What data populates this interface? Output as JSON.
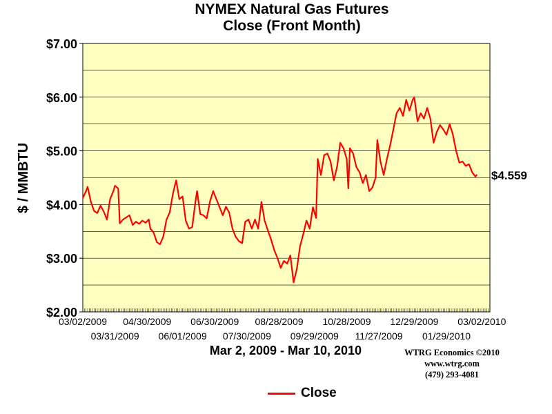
{
  "chart_data": {
    "type": "line",
    "title": "NYMEX Natural Gas Futures",
    "subtitle": "Close (Front Month)",
    "ylabel": "$ / MMBTU",
    "xlabel": "Mar 2, 2009 - Mar 10, 2010",
    "ylim": [
      2.0,
      7.0
    ],
    "y_ticks": [
      "$2.00",
      "$3.00",
      "$4.00",
      "$5.00",
      "$6.00",
      "$7.00"
    ],
    "y_tick_values": [
      2,
      3,
      4,
      5,
      6,
      7
    ],
    "x_ticks_row1": [
      "03/02/2009",
      "04/30/2009",
      "06/30/2009",
      "08/28/2009",
      "10/28/2009",
      "12/29/2009",
      "03/02/2010"
    ],
    "x_ticks_row2": [
      "03/31/2009",
      "06/01/2009",
      "07/30/2009",
      "09/29/2009",
      "11/27/2009",
      "01/29/2010"
    ],
    "x_tick_index_row1": [
      0,
      40,
      82,
      122,
      164,
      206,
      248
    ],
    "x_tick_index_row2": [
      20,
      62,
      102,
      144,
      184,
      226
    ],
    "trading_days": 254,
    "grid": "horizontal",
    "last_value_label": "$4.559",
    "series": [
      {
        "name": "Close",
        "color": "#ff0000",
        "points": [
          [
            0,
            4.12
          ],
          [
            2,
            4.25
          ],
          [
            3,
            4.33
          ],
          [
            5,
            4.05
          ],
          [
            7,
            3.88
          ],
          [
            9,
            3.84
          ],
          [
            11,
            3.98
          ],
          [
            13,
            3.87
          ],
          [
            15,
            3.72
          ],
          [
            17,
            4.1
          ],
          [
            19,
            4.25
          ],
          [
            20,
            4.35
          ],
          [
            22,
            4.3
          ],
          [
            23,
            3.65
          ],
          [
            25,
            3.72
          ],
          [
            27,
            3.76
          ],
          [
            29,
            3.8
          ],
          [
            31,
            3.62
          ],
          [
            33,
            3.68
          ],
          [
            35,
            3.64
          ],
          [
            37,
            3.7
          ],
          [
            39,
            3.66
          ],
          [
            41,
            3.72
          ],
          [
            42,
            3.55
          ],
          [
            44,
            3.48
          ],
          [
            46,
            3.3
          ],
          [
            48,
            3.26
          ],
          [
            50,
            3.4
          ],
          [
            52,
            3.72
          ],
          [
            54,
            3.85
          ],
          [
            56,
            4.2
          ],
          [
            58,
            4.45
          ],
          [
            60,
            4.1
          ],
          [
            62,
            4.15
          ],
          [
            64,
            3.7
          ],
          [
            66,
            3.55
          ],
          [
            68,
            3.58
          ],
          [
            70,
            4.05
          ],
          [
            71,
            4.25
          ],
          [
            73,
            3.82
          ],
          [
            75,
            3.8
          ],
          [
            77,
            3.74
          ],
          [
            79,
            4.05
          ],
          [
            81,
            4.25
          ],
          [
            83,
            4.1
          ],
          [
            85,
            3.95
          ],
          [
            87,
            3.8
          ],
          [
            89,
            3.96
          ],
          [
            91,
            3.85
          ],
          [
            93,
            3.55
          ],
          [
            95,
            3.4
          ],
          [
            97,
            3.32
          ],
          [
            99,
            3.28
          ],
          [
            101,
            3.68
          ],
          [
            103,
            3.72
          ],
          [
            105,
            3.55
          ],
          [
            107,
            3.72
          ],
          [
            109,
            3.55
          ],
          [
            111,
            4.05
          ],
          [
            113,
            3.7
          ],
          [
            115,
            3.52
          ],
          [
            117,
            3.35
          ],
          [
            119,
            3.15
          ],
          [
            121,
            3.0
          ],
          [
            123,
            2.82
          ],
          [
            125,
            2.95
          ],
          [
            127,
            2.9
          ],
          [
            129,
            3.05
          ],
          [
            131,
            2.55
          ],
          [
            133,
            2.8
          ],
          [
            135,
            3.22
          ],
          [
            137,
            3.45
          ],
          [
            139,
            3.7
          ],
          [
            141,
            3.55
          ],
          [
            143,
            3.95
          ],
          [
            145,
            3.75
          ],
          [
            146,
            4.85
          ],
          [
            148,
            4.55
          ],
          [
            150,
            4.92
          ],
          [
            152,
            4.95
          ],
          [
            154,
            4.8
          ],
          [
            156,
            4.45
          ],
          [
            158,
            4.7
          ],
          [
            160,
            5.15
          ],
          [
            162,
            5.05
          ],
          [
            164,
            4.85
          ],
          [
            165,
            4.3
          ],
          [
            166,
            5.05
          ],
          [
            168,
            4.95
          ],
          [
            170,
            4.7
          ],
          [
            172,
            4.6
          ],
          [
            174,
            4.4
          ],
          [
            176,
            4.55
          ],
          [
            178,
            4.25
          ],
          [
            180,
            4.32
          ],
          [
            182,
            4.5
          ],
          [
            183,
            5.2
          ],
          [
            185,
            4.8
          ],
          [
            187,
            4.55
          ],
          [
            189,
            4.85
          ],
          [
            191,
            5.1
          ],
          [
            193,
            5.4
          ],
          [
            195,
            5.7
          ],
          [
            197,
            5.8
          ],
          [
            199,
            5.65
          ],
          [
            201,
            5.95
          ],
          [
            203,
            5.75
          ],
          [
            205,
            5.95
          ],
          [
            206,
            6.0
          ],
          [
            208,
            5.55
          ],
          [
            210,
            5.7
          ],
          [
            212,
            5.6
          ],
          [
            214,
            5.8
          ],
          [
            216,
            5.6
          ],
          [
            218,
            5.15
          ],
          [
            220,
            5.35
          ],
          [
            222,
            5.48
          ],
          [
            224,
            5.4
          ],
          [
            226,
            5.3
          ],
          [
            228,
            5.5
          ],
          [
            230,
            5.3
          ],
          [
            232,
            5.0
          ],
          [
            234,
            4.78
          ],
          [
            236,
            4.8
          ],
          [
            238,
            4.72
          ],
          [
            240,
            4.75
          ],
          [
            242,
            4.6
          ],
          [
            244,
            4.52
          ],
          [
            245,
            4.559
          ]
        ]
      }
    ]
  },
  "credits": {
    "line1": "WTRG Economics  ©2010",
    "line2": "www.wtrg.com",
    "line3": "(479) 293-4081"
  },
  "legend": {
    "label": "Close"
  }
}
